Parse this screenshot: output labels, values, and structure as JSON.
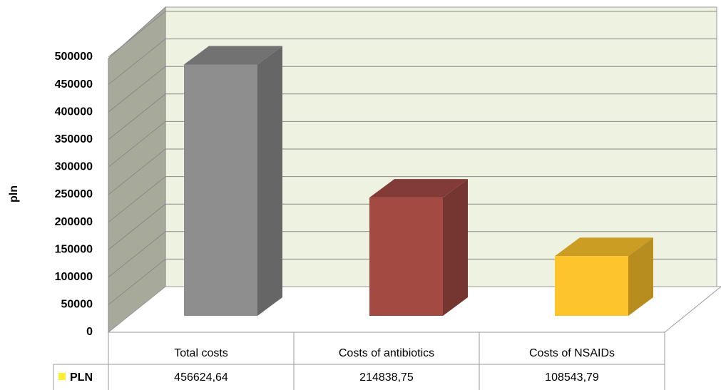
{
  "chart_data": {
    "type": "bar3d",
    "y_label": "pln",
    "categories": [
      "Total costs",
      "Costs of antibiotics",
      "Costs of NSAIDs"
    ],
    "series": [
      {
        "name": "PLN",
        "color": "#ffee33",
        "values": [
          456624.64,
          214838.75,
          108543.79
        ],
        "value_labels": [
          "456624,64",
          "214838,75",
          "108543,79"
        ]
      }
    ],
    "bar_colors": [
      "#8e8e8e",
      "#a34a43",
      "#fec42c"
    ],
    "ylim": [
      0,
      500000
    ],
    "yticks": [
      0,
      50000,
      100000,
      150000,
      200000,
      250000,
      300000,
      350000,
      400000,
      450000,
      500000
    ],
    "grid": true
  }
}
